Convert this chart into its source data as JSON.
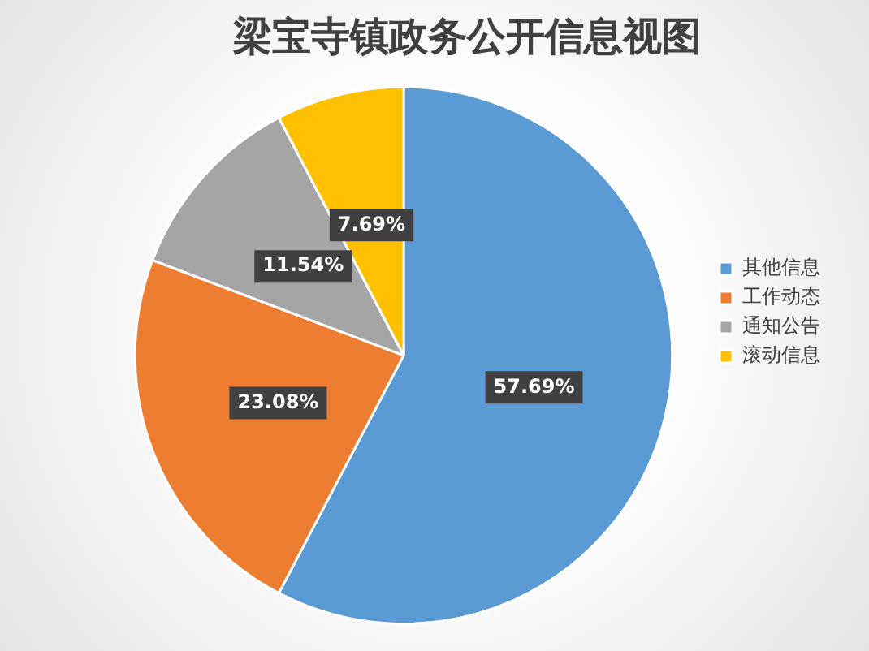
{
  "chart_data": {
    "type": "pie",
    "title": "梁宝寺镇政务公开信息视图",
    "categories": [
      "其他信息",
      "工作动态",
      "通知公告",
      "滚动信息"
    ],
    "values": [
      57.69,
      23.08,
      11.54,
      7.69
    ],
    "colors": [
      "#5b9bd5",
      "#ed7d31",
      "#a5a5a5",
      "#ffc000"
    ],
    "value_labels": [
      "57.69%",
      "23.08%",
      "11.54%",
      "7.69%"
    ],
    "legend": "right"
  }
}
